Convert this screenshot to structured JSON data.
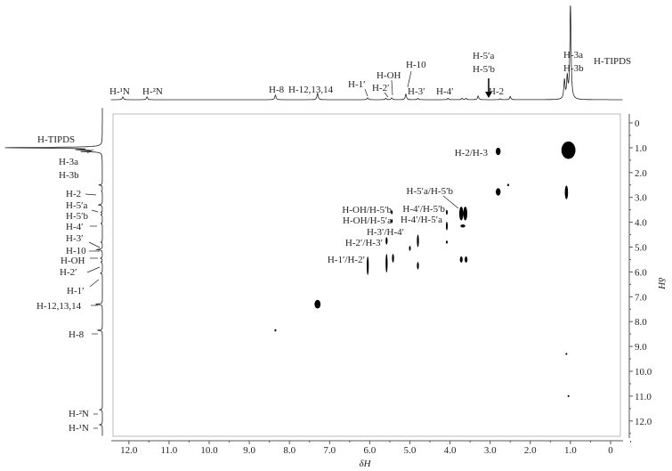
{
  "chart_data": {
    "type": "heatmap",
    "subtype": "2D COSY NMR contour plot",
    "xlabel": "δH",
    "ylabel": "δH",
    "xlim": [
      12.5,
      -0.3
    ],
    "ylim": [
      -0.3,
      12.7
    ],
    "x_ticks": [
      "12.0",
      "11.0",
      "10.0",
      "9.0",
      "8.0",
      "7.0",
      "6.0",
      "5.0",
      "4.0",
      "3.0",
      "2.0",
      "1.0",
      "0"
    ],
    "y_ticks": [
      "0",
      "1.0",
      "2.0",
      "3.0",
      "4.0",
      "5.0",
      "6.0",
      "7.0",
      "8.0",
      "9.0",
      "10.0",
      "11.0",
      "12.0"
    ],
    "grid": false,
    "projection_peaks": [
      {
        "ppm": 12.15,
        "h": 0.03
      },
      {
        "ppm": 11.55,
        "h": 0.03
      },
      {
        "ppm": 8.35,
        "h": 0.05
      },
      {
        "ppm": 7.3,
        "h": 0.07
      },
      {
        "ppm": 6.05,
        "h": 0.02
      },
      {
        "ppm": 5.6,
        "h": 0.015
      },
      {
        "ppm": 5.45,
        "h": 0.02
      },
      {
        "ppm": 5.1,
        "h": 0.06
      },
      {
        "ppm": 4.8,
        "h": 0.015
      },
      {
        "ppm": 4.05,
        "h": 0.015
      },
      {
        "ppm": 3.7,
        "h": 0.015
      },
      {
        "ppm": 3.6,
        "h": 0.015
      },
      {
        "ppm": 3.3,
        "h": 0.04
      },
      {
        "ppm": 2.75,
        "h": 0.01
      },
      {
        "ppm": 2.5,
        "h": 0.035
      },
      {
        "ppm": 1.15,
        "h": 0.2
      },
      {
        "ppm": 1.08,
        "h": 0.22
      },
      {
        "ppm": 1.0,
        "h": 1.0
      }
    ],
    "projection_labels_top": [
      "H-¹N",
      "H-²N",
      "H-8",
      "H-12,13,14",
      "H-1′",
      "H-2′",
      "H-OH",
      "H-10",
      "H-3′",
      "H-4′",
      "H-5′a",
      "H-5′b",
      "H-2",
      "H-3a",
      "H-3b",
      "H-TIPDS"
    ],
    "projection_labels_left": [
      "H-TIPDS",
      "H-3a",
      "H-3b",
      "H-2",
      "H-5′a",
      "H-5′b",
      "H-4′",
      "H-3′",
      "H-10",
      "H-OH",
      "H-2′",
      "H-1′",
      "H-12,13,14",
      "H-8",
      "H-²N",
      "H-¹N"
    ],
    "cross_peaks": [
      {
        "x": 2.8,
        "y": 1.15,
        "w": 0.12,
        "h": 0.3
      },
      {
        "x": 1.05,
        "y": 1.1,
        "w": 0.35,
        "h": 0.7
      },
      {
        "x": 1.1,
        "y": 2.8,
        "w": 0.08,
        "h": 0.55
      },
      {
        "x": 2.8,
        "y": 2.78,
        "w": 0.12,
        "h": 0.3
      },
      {
        "x": 2.55,
        "y": 2.5,
        "w": 0.03,
        "h": 0.1
      },
      {
        "x": 3.72,
        "y": 3.65,
        "w": 0.1,
        "h": 0.55
      },
      {
        "x": 3.62,
        "y": 3.65,
        "w": 0.1,
        "h": 0.55
      },
      {
        "x": 3.68,
        "y": 4.15,
        "w": 0.12,
        "h": 0.12
      },
      {
        "x": 4.08,
        "y": 3.6,
        "w": 0.03,
        "h": 0.2
      },
      {
        "x": 4.08,
        "y": 4.15,
        "w": 0.04,
        "h": 0.35
      },
      {
        "x": 4.08,
        "y": 4.8,
        "w": 0.03,
        "h": 0.12
      },
      {
        "x": 5.45,
        "y": 3.6,
        "w": 0.03,
        "h": 0.15
      },
      {
        "x": 5.45,
        "y": 3.95,
        "w": 0.03,
        "h": 0.15
      },
      {
        "x": 4.8,
        "y": 4.75,
        "w": 0.05,
        "h": 0.5
      },
      {
        "x": 5.58,
        "y": 4.75,
        "w": 0.05,
        "h": 0.3
      },
      {
        "x": 5.0,
        "y": 5.05,
        "w": 0.04,
        "h": 0.2
      },
      {
        "x": 6.05,
        "y": 5.75,
        "w": 0.05,
        "h": 0.75
      },
      {
        "x": 5.58,
        "y": 5.65,
        "w": 0.05,
        "h": 0.75
      },
      {
        "x": 5.42,
        "y": 5.45,
        "w": 0.05,
        "h": 0.35
      },
      {
        "x": 4.8,
        "y": 5.75,
        "w": 0.05,
        "h": 0.3
      },
      {
        "x": 3.72,
        "y": 5.5,
        "w": 0.07,
        "h": 0.25
      },
      {
        "x": 3.6,
        "y": 5.5,
        "w": 0.07,
        "h": 0.25
      },
      {
        "x": 7.3,
        "y": 7.3,
        "w": 0.15,
        "h": 0.35
      },
      {
        "x": 8.35,
        "y": 8.35,
        "w": 0.03,
        "h": 0.1
      },
      {
        "x": 1.1,
        "y": 9.3,
        "w": 0.02,
        "h": 0.08
      },
      {
        "x": 1.05,
        "y": 11.0,
        "w": 0.02,
        "h": 0.08
      }
    ],
    "annotations": [
      "H-2/H-3",
      "H-5′a/H-5′b",
      "H-4′/H-5′b",
      "H-4′/H-5′a",
      "H-OH/H-5′b",
      "H-OH/H-5′a",
      "H-3′/H-4′",
      "H-2′/H-3′",
      "H-1′/H-2′"
    ]
  }
}
